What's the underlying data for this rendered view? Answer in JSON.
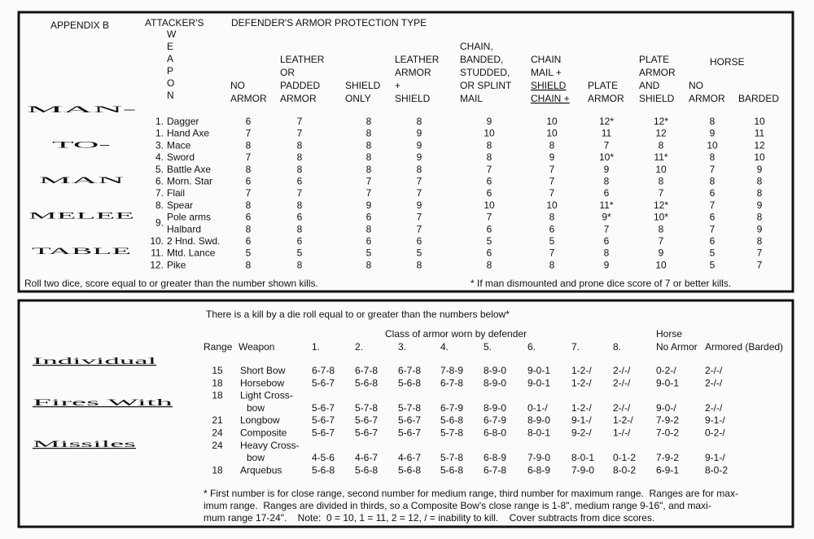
{
  "melee": {
    "appendix": "APPENDIX B",
    "attacker": "ATTACKER'S",
    "weapon_letters": [
      "W",
      "E",
      "A",
      "P",
      "O",
      "N"
    ],
    "defender": "DEFENDER'S ARMOR PROTECTION TYPE",
    "title": [
      "MAN-",
      "TO-",
      "MAN",
      "MELEE",
      "TABLE"
    ],
    "horse": "HORSE",
    "columns": [
      [
        "NO",
        "ARMOR"
      ],
      [
        "LEATHER",
        "OR",
        "PADDED",
        "ARMOR"
      ],
      [
        "SHIELD",
        "ONLY"
      ],
      [
        "LEATHER",
        "ARMOR",
        "+",
        "SHIELD"
      ],
      [
        "CHAIN,",
        "BANDED,",
        "STUDDED,",
        "OR SPLINT",
        "MAIL"
      ],
      [
        "CHAIN",
        "MAIL +",
        "SHIELD",
        "CHAIN +"
      ],
      [
        "PLATE",
        "ARMOR"
      ],
      [
        "PLATE",
        "ARMOR",
        "AND",
        "SHIELD"
      ],
      [
        "NO",
        "ARMOR"
      ],
      [
        "BARDED"
      ]
    ],
    "rows": [
      {
        "num": "1.",
        "weapon": "Dagger",
        "cells": [
          "6",
          "7",
          "8",
          "8",
          "9",
          "10",
          "12*",
          "12*",
          "8",
          "10"
        ]
      },
      {
        "num": "1.",
        "weapon": "Hand Axe",
        "cells": [
          "7",
          "7",
          "8",
          "9",
          "10",
          "10",
          "11",
          "12",
          "9",
          "11"
        ]
      },
      {
        "num": "3.",
        "weapon": "Mace",
        "cells": [
          "8",
          "8",
          "8",
          "9",
          "8",
          "8",
          "7",
          "8",
          "10",
          "12"
        ]
      },
      {
        "num": "4.",
        "weapon": "Sword",
        "cells": [
          "7",
          "8",
          "8",
          "9",
          "8",
          "9",
          "10*",
          "11*",
          "8",
          "10"
        ]
      },
      {
        "num": "5.",
        "weapon": "Battle Axe",
        "cells": [
          "8",
          "8",
          "8",
          "8",
          "7",
          "7",
          "9",
          "10",
          "7",
          "9"
        ]
      },
      {
        "num": "6.",
        "weapon": "Morn. Star",
        "cells": [
          "6",
          "6",
          "7",
          "7",
          "6",
          "7",
          "8",
          "8",
          "8",
          "8"
        ]
      },
      {
        "num": "7.",
        "weapon": "Flail",
        "cells": [
          "7",
          "7",
          "7",
          "7",
          "6",
          "7",
          "6",
          "7",
          "6",
          "8"
        ]
      },
      {
        "num": "8.",
        "weapon": "Spear",
        "cells": [
          "8",
          "8",
          "9",
          "9",
          "10",
          "10",
          "11*",
          "12*",
          "7",
          "9"
        ]
      },
      {
        "num": "9.",
        "weapon": "Pole arms",
        "cells": [
          "6",
          "6",
          "6",
          "7",
          "7",
          "8",
          "9*",
          "10*",
          "6",
          "8"
        ]
      },
      {
        "weapon": "Halbard",
        "cells": [
          "8",
          "8",
          "8",
          "7",
          "6",
          "6",
          "7",
          "8",
          "7",
          "9"
        ]
      },
      {
        "num": "10.",
        "weapon": "2 Hnd. Swd.",
        "cells": [
          "6",
          "6",
          "6",
          "6",
          "5",
          "5",
          "6",
          "7",
          "6",
          "8"
        ]
      },
      {
        "num": "11.",
        "weapon": "Mtd. Lance",
        "cells": [
          "5",
          "5",
          "5",
          "5",
          "6",
          "7",
          "8",
          "9",
          "5",
          "7"
        ]
      },
      {
        "num": "12.",
        "weapon": "Pike",
        "cells": [
          "8",
          "8",
          "8",
          "8",
          "8",
          "8",
          "9",
          "10",
          "5",
          "7"
        ]
      }
    ],
    "footer_left": "Roll two dice, score equal to or greater than the number shown kills.",
    "footer_right": "* If man dismounted and prone dice score of 7 or better kills."
  },
  "missiles": {
    "title": [
      "Individual",
      "Fires With",
      "Missiles"
    ],
    "intro": "There is a kill by a die roll equal to or greater than the numbers below*",
    "class_header": "Class of armor worn by defender",
    "horse": "Horse",
    "headers": [
      "Range",
      "Weapon",
      "1.",
      "2.",
      "3.",
      "4.",
      "5.",
      "6.",
      "7.",
      "8.",
      "No Armor",
      "Armored (Barded)"
    ],
    "rows": [
      {
        "range": "15",
        "weapon": [
          "Short Bow"
        ],
        "cells": [
          "6-7-8",
          "6-7-8",
          "6-7-8",
          "7-8-9",
          "8-9-0",
          "9-0-1",
          "1-2-/",
          "2-/-/",
          "0-2-/",
          "2-/-/"
        ]
      },
      {
        "range": "18",
        "weapon": [
          "Horsebow"
        ],
        "cells": [
          "5-6-7",
          "5-6-8",
          "5-6-8",
          "6-7-8",
          "8-9-0",
          "9-0-1",
          "1-2-/",
          "2-/-/",
          "9-0-1",
          "2-/-/"
        ]
      },
      {
        "range": "18",
        "weapon": [
          "Light Cross-",
          "bow"
        ],
        "cells": [
          "5-6-7",
          "5-7-8",
          "5-7-8",
          "6-7-9",
          "8-9-0",
          "0-1-/",
          "1-2-/",
          "2-/-/",
          "9-0-/",
          "2-/-/"
        ]
      },
      {
        "range": "21",
        "weapon": [
          "Longbow"
        ],
        "cells": [
          "5-6-7",
          "5-6-7",
          "5-6-7",
          "5-6-8",
          "6-7-9",
          "8-9-0",
          "9-1-/",
          "1-2-/",
          "7-9-2",
          "9-1-/"
        ]
      },
      {
        "range": "24",
        "weapon": [
          "Composite"
        ],
        "cells": [
          "5-6-7",
          "5-6-7",
          "5-6-7",
          "5-7-8",
          "6-8-0",
          "8-0-1",
          "9-2-/",
          "1-/-/",
          "7-0-2",
          "0-2-/"
        ]
      },
      {
        "range": "24",
        "weapon": [
          "Heavy Cross-",
          "bow"
        ],
        "cells": [
          "4-5-6",
          "4-6-7",
          "4-6-7",
          "5-7-8",
          "6-8-9",
          "7-9-0",
          "8-0-1",
          "0-1-2",
          "7-9-2",
          "9-1-/"
        ]
      },
      {
        "range": "18",
        "weapon": [
          "Arquebus"
        ],
        "cells": [
          "5-6-8",
          "5-6-8",
          "5-6-8",
          "5-6-8",
          "6-7-8",
          "6-8-9",
          "7-9-0",
          "8-0-2",
          "6-9-1",
          "8-0-2"
        ]
      }
    ],
    "footnote": [
      "* First number is for close range, second number for medium range, third number for maximum range.  Ranges are for max-",
      "imum range.  Ranges are divided in thirds, so a Composite Bow's close range is 1-8\", medium range 9-16\", and maxi-",
      "mum range 17-24\".    Note:  0 = 10, 1 = 11, 2 = 12, / = inability to kill.    Cover subtracts from dice scores."
    ]
  }
}
